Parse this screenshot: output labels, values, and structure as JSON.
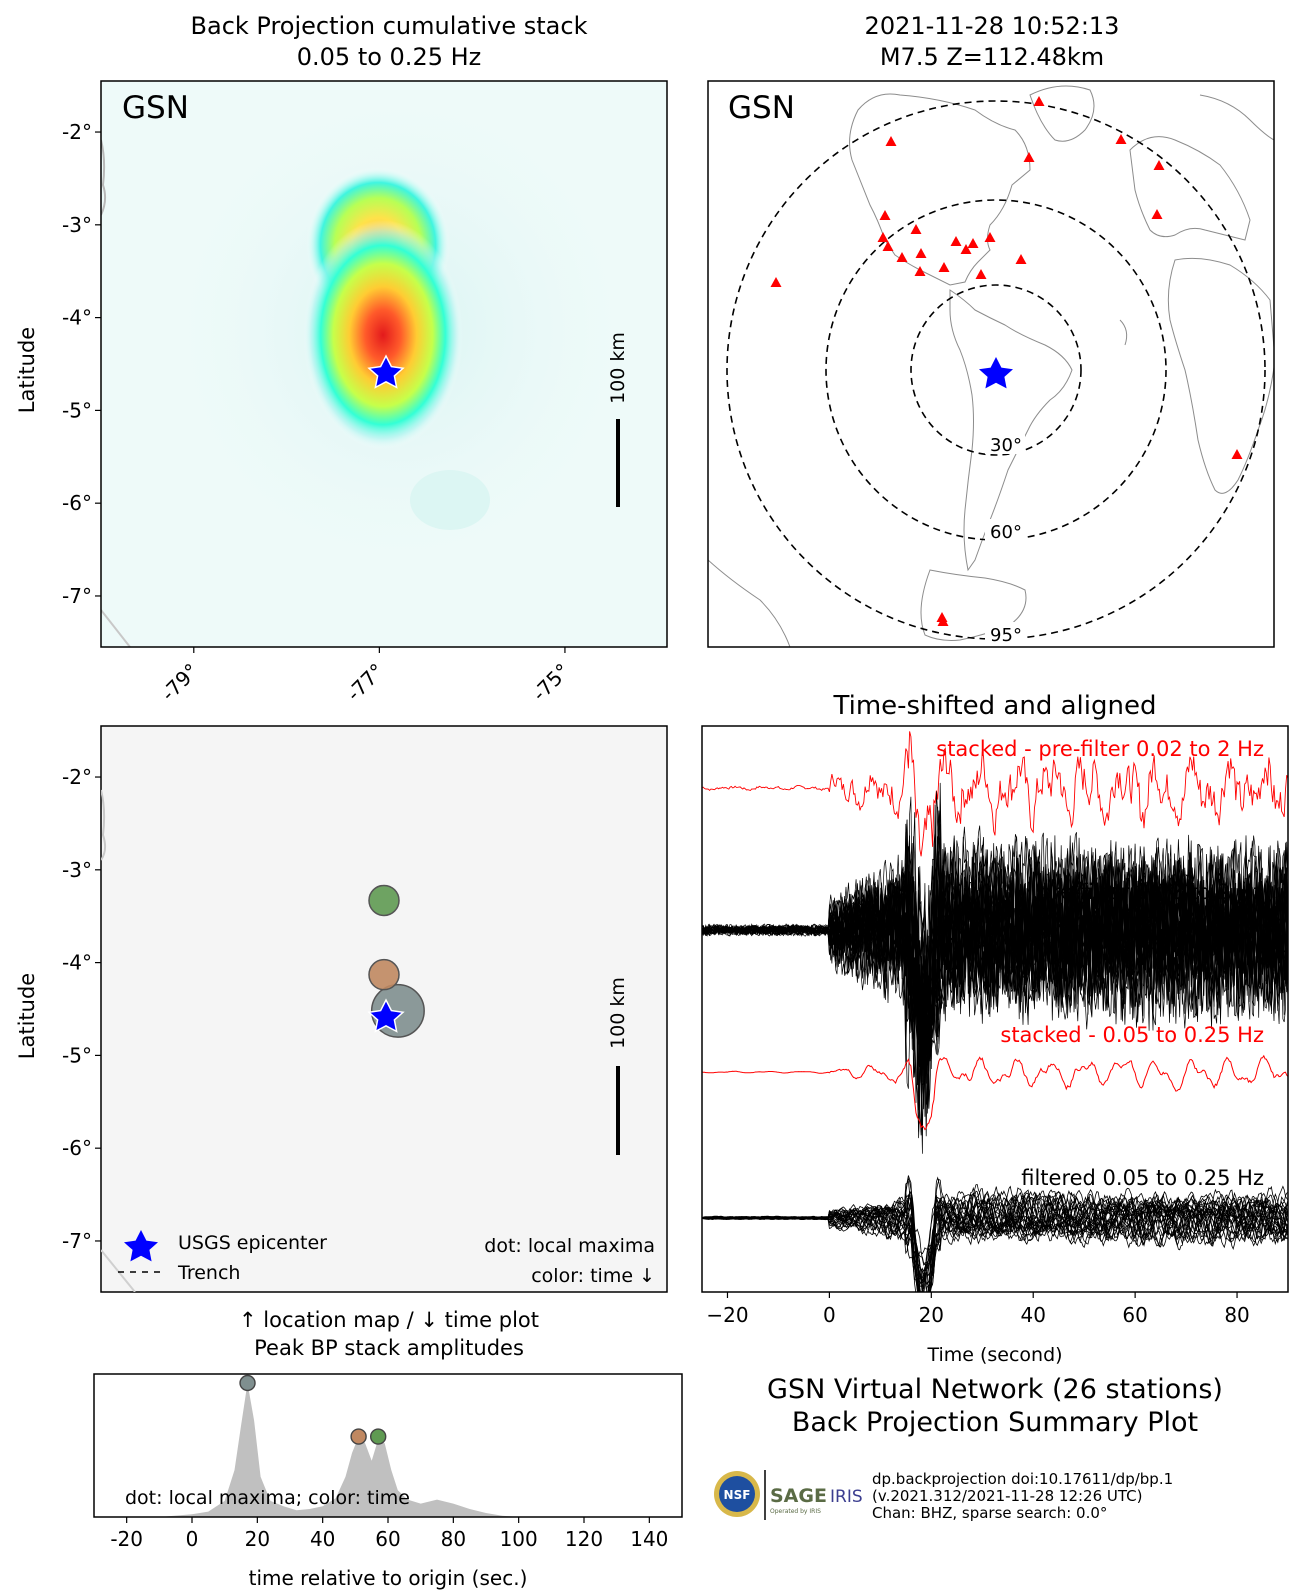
{
  "colors": {
    "red": "#ff0000",
    "black": "#000000",
    "blue": "#0000ff",
    "coast": "#a8a8a8"
  },
  "panel_tl": {
    "title_line1": "Back Projection cumulative stack",
    "title_line2": "0.05 to 0.25 Hz",
    "network": "GSN",
    "ylabel": "Latitude",
    "scale_label": "100 km"
  },
  "panel_tr": {
    "title_line1": "2021-11-28 10:52:13",
    "title_line2": "M7.5 Z=112.48km",
    "network": "GSN",
    "ring_labels": [
      "30°",
      "60°",
      "95°"
    ]
  },
  "panel_ml": {
    "ylabel": "Latitude",
    "scale_label": "100 km",
    "legend_epicenter": "USGS epicenter",
    "legend_trench": "Trench",
    "note_line1": "dot: local maxima",
    "note_line2": "color: time ↓",
    "caption_line1": "↑ location map / ↓ time plot",
    "caption_line2": "Peak BP stack amplitudes"
  },
  "panel_bl": {
    "note": "dot: local maxima; color: time",
    "xlabel": "time relative to origin (sec.)"
  },
  "panel_mr": {
    "title": "Time-shifted and aligned",
    "trace1_label": "stacked - pre-filter 0.02 to 2 Hz",
    "trace2_label": "pre-filter 0.02 to 2 Hz",
    "trace3_label": "stacked - 0.05 to 0.25 Hz",
    "trace4_label": "filtered 0.05 to 0.25 Hz",
    "xlabel": "Time (second)"
  },
  "footer": {
    "title_line1": "GSN Virtual Network (26 stations)",
    "title_line2": "Back Projection Summary Plot",
    "credit_line1": "dp.backprojection doi:10.17611/dp/bp.1",
    "credit_line2": "(v.2021.312/2021-11-28 12:26 UTC)",
    "credit_line3": "Chan: BHZ, sparse search: 0.0°",
    "logo_nsf": "NSF",
    "logo_sage": "SAGE",
    "logo_iris": "IRIS",
    "logo_sage_sub": "Operated by IRIS"
  },
  "chart_data": [
    {
      "type": "heatmap",
      "title": "Back Projection cumulative stack\n0.05 to 0.25 Hz",
      "ylabel": "Latitude",
      "xticks": [
        "-79°",
        "-77°",
        "-75°"
      ],
      "yticks": [
        "-2°",
        "-3°",
        "-4°",
        "-5°",
        "-6°",
        "-7°"
      ],
      "xlim": [
        -80.0,
        -73.9
      ],
      "ylim": [
        -7.55,
        -1.45
      ],
      "epicenter": {
        "lon": -76.9,
        "lat": -4.52
      },
      "blobs": [
        {
          "lon": -77.0,
          "lat": -4.2,
          "peak": 1.0
        },
        {
          "lon": -77.05,
          "lat": -3.3,
          "peak": 0.55
        }
      ]
    },
    {
      "type": "map",
      "title": "2021-11-28 10:52:13\nM7.5 Z=112.48km",
      "rings_deg": [
        30,
        60,
        95
      ]
    },
    {
      "type": "scatter",
      "ylabel": "Latitude",
      "yticks": [
        "-2°",
        "-3°",
        "-4°",
        "-5°",
        "-6°",
        "-7°"
      ],
      "ylim": [
        -7.55,
        -1.45
      ],
      "xlim": [
        -80.0,
        -73.9
      ],
      "points": [
        {
          "lon": -76.95,
          "lat": -3.33,
          "time": 57,
          "color": "#5f9a52",
          "size": 1
        },
        {
          "lon": -76.95,
          "lat": -4.13,
          "time": 51,
          "color": "#c08861",
          "size": 1
        },
        {
          "lon": -76.8,
          "lat": -4.52,
          "time": 17,
          "color": "#7f8f8f",
          "size": 1.75
        }
      ]
    },
    {
      "type": "area",
      "xlabel": "time relative to origin (sec.)",
      "xticks": [
        "-20",
        "0",
        "20",
        "40",
        "60",
        "80",
        "100",
        "120",
        "140"
      ],
      "xlim": [
        -30,
        150
      ],
      "x": [
        -30,
        -10,
        0,
        5,
        10,
        13,
        15,
        17,
        19,
        21,
        24,
        28,
        32,
        36,
        40,
        44,
        47,
        49,
        51,
        53,
        55,
        57,
        59,
        61,
        63,
        66,
        70,
        75,
        80,
        85,
        90,
        95,
        100,
        150
      ],
      "values": [
        0,
        0,
        0.02,
        0.04,
        0.12,
        0.35,
        0.68,
        1.0,
        0.72,
        0.3,
        0.12,
        0.08,
        0.05,
        0.06,
        0.08,
        0.14,
        0.3,
        0.48,
        0.6,
        0.55,
        0.42,
        0.58,
        0.55,
        0.35,
        0.2,
        0.13,
        0.1,
        0.13,
        0.1,
        0.06,
        0.03,
        0.01,
        0,
        0
      ],
      "maxima": [
        {
          "x": 17,
          "y": 1.0,
          "color": "#7f8f8f"
        },
        {
          "x": 51,
          "y": 0.6,
          "color": "#c08861"
        },
        {
          "x": 57,
          "y": 0.6,
          "color": "#5f9a52"
        }
      ]
    },
    {
      "type": "line",
      "title": "Time-shifted and aligned",
      "xlabel": "Time (second)",
      "xticks": [
        "−20",
        "0",
        "20",
        "40",
        "60",
        "80"
      ],
      "xlim": [
        -25,
        90
      ],
      "series": [
        {
          "name": "stacked - pre-filter 0.02 to 2 Hz",
          "color": "#ff0000"
        },
        {
          "name": "pre-filter 0.02 to 2 Hz",
          "color": "#000000"
        },
        {
          "name": "stacked - 0.05 to 0.25 Hz",
          "color": "#ff0000"
        },
        {
          "name": "filtered 0.05 to 0.25 Hz",
          "color": "#000000"
        }
      ]
    }
  ]
}
